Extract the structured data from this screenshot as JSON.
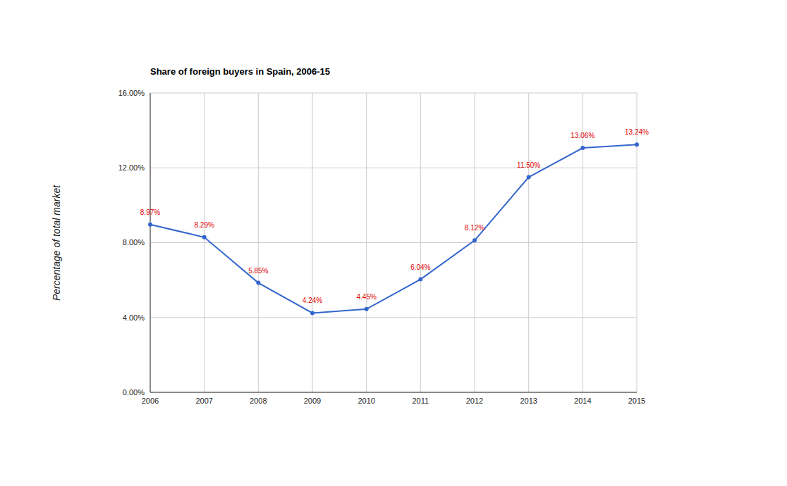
{
  "chart_data": {
    "type": "line",
    "title": "Share of foreign buyers in Spain, 2006-15",
    "y_label": "Percentage of total market",
    "categories": [
      "2006",
      "2007",
      "2008",
      "2009",
      "2010",
      "2011",
      "2012",
      "2013",
      "2014",
      "2015"
    ],
    "values": [
      8.97,
      8.29,
      5.85,
      4.24,
      4.45,
      6.04,
      8.12,
      11.5,
      13.06,
      13.24
    ],
    "value_labels": [
      "8.97%",
      "8.29%",
      "5.85%",
      "4.24%",
      "4.45%",
      "6.04%",
      "8.12%",
      "11.50%",
      "13.06%",
      "13.24%"
    ],
    "color": "#3366cc",
    "marker": "circle",
    "data_labels": true,
    "grid": true,
    "ylim": [
      0,
      16
    ],
    "yticks": [
      {
        "value": 0,
        "label": "0.00%"
      },
      {
        "value": 4,
        "label": "4.00%"
      },
      {
        "value": 8,
        "label": "8.00%"
      },
      {
        "value": 12,
        "label": "12.00%"
      },
      {
        "value": 16,
        "label": "16.00%"
      }
    ]
  }
}
